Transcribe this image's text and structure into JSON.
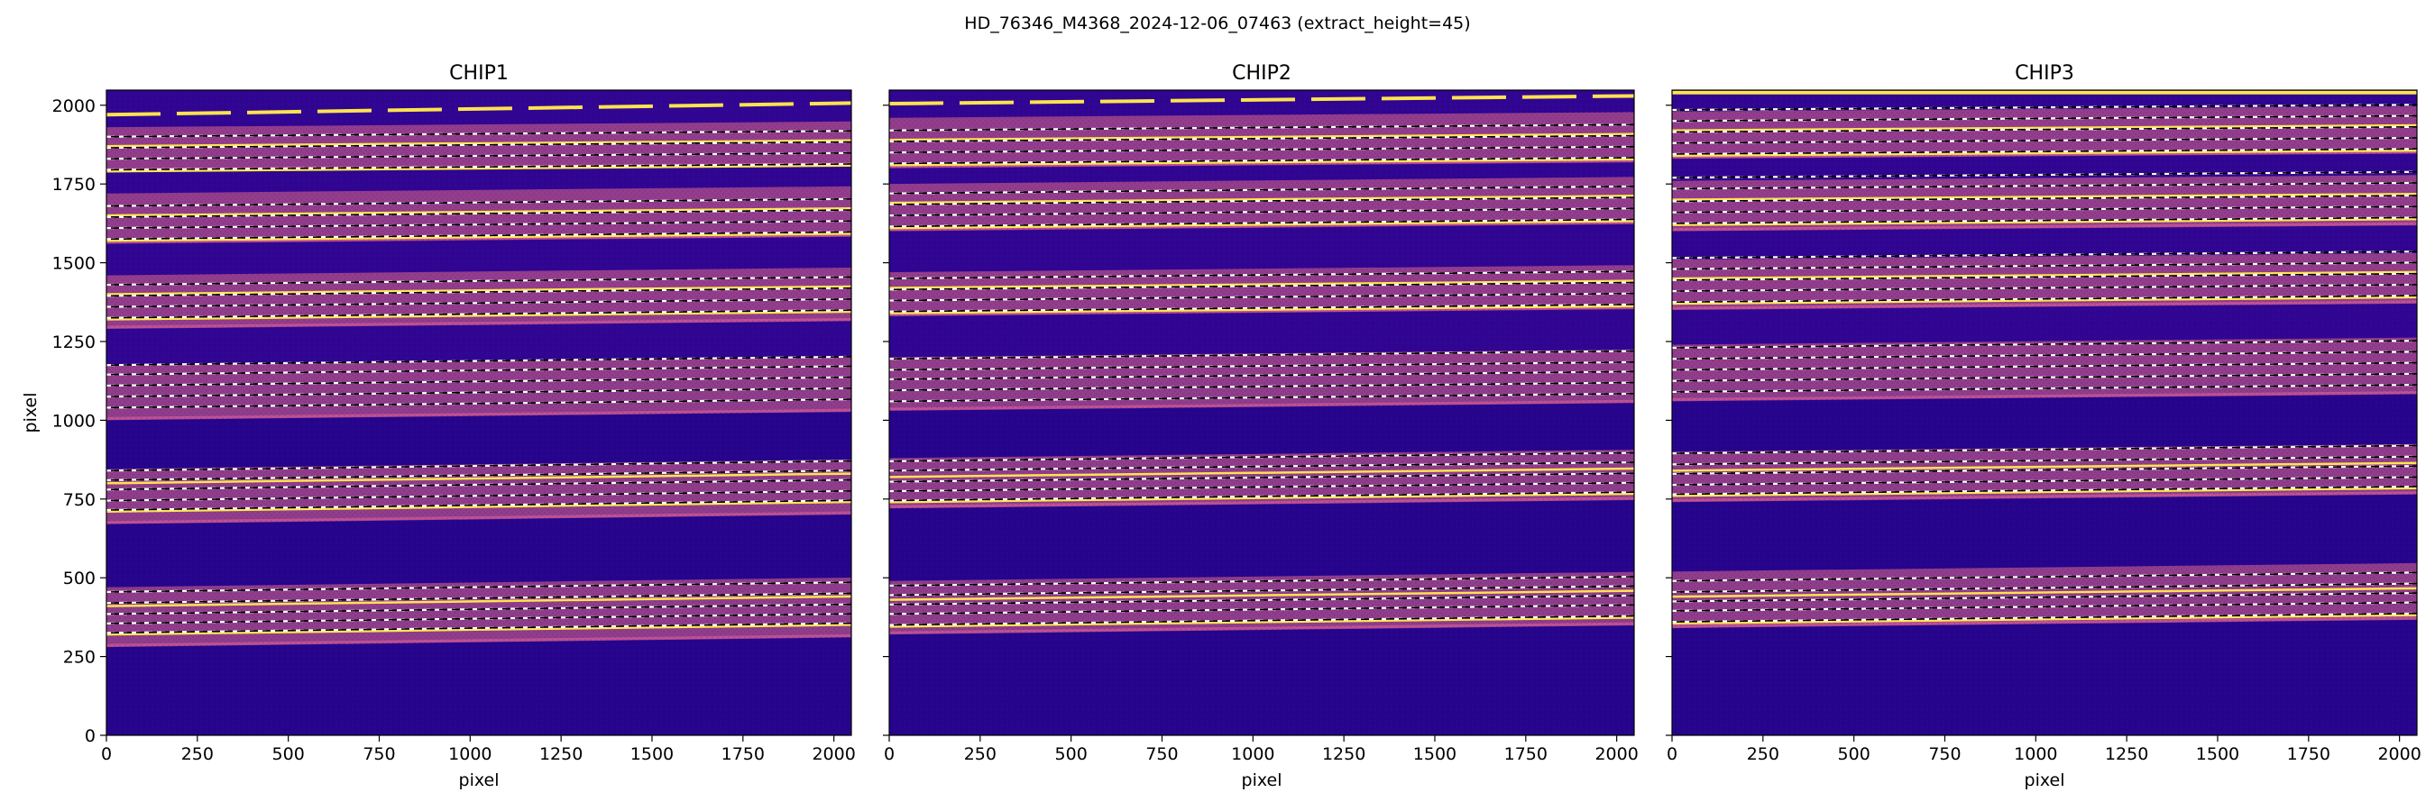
{
  "figure": {
    "suptitle": "HD_76346_M4368_2024-12-06_07463  (extract_height=45)"
  },
  "colors": {
    "background_dark": "#26048c",
    "background_mid": "#3a0596",
    "order_band": "#b4508a",
    "order_band_edge": "#e0609a",
    "trace_line": "#fde34f",
    "extract_line_white": "#ffffff",
    "extract_line_black": "#000000",
    "axis": "#000000"
  },
  "chart_data": [
    {
      "type": "heatmap",
      "title": "CHIP1",
      "xlabel": "pixel",
      "ylabel": "pixel",
      "xlim": [
        0,
        2048
      ],
      "ylim": [
        0,
        2048
      ],
      "xticks": [
        0,
        250,
        500,
        750,
        1000,
        1250,
        1500,
        1750,
        2000
      ],
      "yticks": [
        0,
        250,
        500,
        750,
        1000,
        1250,
        1500,
        1750,
        2000
      ],
      "order_bands": [
        {
          "y0": 280,
          "y1": 470,
          "slope": 0.015
        },
        {
          "y0": 670,
          "y1": 845,
          "slope": 0.015
        },
        {
          "y0": 1000,
          "y1": 1175,
          "slope": 0.013
        },
        {
          "y0": 1290,
          "y1": 1460,
          "slope": 0.012
        },
        {
          "y0": 1560,
          "y1": 1720,
          "slope": 0.011
        },
        {
          "y0": 1790,
          "y1": 1930,
          "slope": 0.009
        }
      ],
      "traces": [
        {
          "y": 320,
          "slope": 0.015
        },
        {
          "y": 410,
          "slope": 0.015
        },
        {
          "y": 710,
          "slope": 0.015
        },
        {
          "y": 800,
          "slope": 0.015
        },
        {
          "y": 1320,
          "slope": 0.012
        },
        {
          "y": 1400,
          "slope": 0.012
        },
        {
          "y": 1570,
          "slope": 0.011
        },
        {
          "y": 1650,
          "slope": 0.011
        },
        {
          "y": 1790,
          "slope": 0.009
        },
        {
          "y": 1870,
          "slope": 0.009
        }
      ],
      "extraction_lines": [
        {
          "y": 325,
          "slope": 0.015
        },
        {
          "y": 355,
          "slope": 0.015
        },
        {
          "y": 385,
          "slope": 0.015
        },
        {
          "y": 420,
          "slope": 0.015
        },
        {
          "y": 455,
          "slope": 0.015
        },
        {
          "y": 715,
          "slope": 0.015
        },
        {
          "y": 745,
          "slope": 0.015
        },
        {
          "y": 780,
          "slope": 0.015
        },
        {
          "y": 810,
          "slope": 0.015
        },
        {
          "y": 840,
          "slope": 0.015
        },
        {
          "y": 1040,
          "slope": 0.013
        },
        {
          "y": 1075,
          "slope": 0.013
        },
        {
          "y": 1110,
          "slope": 0.013
        },
        {
          "y": 1145,
          "slope": 0.013
        },
        {
          "y": 1175,
          "slope": 0.013
        },
        {
          "y": 1325,
          "slope": 0.012
        },
        {
          "y": 1360,
          "slope": 0.012
        },
        {
          "y": 1395,
          "slope": 0.012
        },
        {
          "y": 1430,
          "slope": 0.012
        },
        {
          "y": 1575,
          "slope": 0.011
        },
        {
          "y": 1610,
          "slope": 0.011
        },
        {
          "y": 1645,
          "slope": 0.011
        },
        {
          "y": 1680,
          "slope": 0.011
        },
        {
          "y": 1795,
          "slope": 0.009
        },
        {
          "y": 1830,
          "slope": 0.009
        },
        {
          "y": 1865,
          "slope": 0.009
        },
        {
          "y": 1900,
          "slope": 0.009
        }
      ],
      "edge_trace": {
        "y": 1970,
        "slope": 0.018,
        "dashed": true
      }
    },
    {
      "type": "heatmap",
      "title": "CHIP2",
      "xlabel": "pixel",
      "ylabel": "",
      "xlim": [
        0,
        2048
      ],
      "ylim": [
        0,
        2048
      ],
      "xticks": [
        0,
        250,
        500,
        750,
        1000,
        1250,
        1500,
        1750,
        2000
      ],
      "yticks": [
        0,
        250,
        500,
        750,
        1000,
        1250,
        1500,
        1750,
        2000
      ],
      "order_bands": [
        {
          "y0": 320,
          "y1": 490,
          "slope": 0.014
        },
        {
          "y0": 720,
          "y1": 880,
          "slope": 0.013
        },
        {
          "y0": 1030,
          "y1": 1200,
          "slope": 0.012
        },
        {
          "y0": 1330,
          "y1": 1470,
          "slope": 0.011
        },
        {
          "y0": 1600,
          "y1": 1750,
          "slope": 0.011
        },
        {
          "y0": 1800,
          "y1": 1960,
          "slope": 0.009
        }
      ],
      "traces": [
        {
          "y": 345,
          "slope": 0.014
        },
        {
          "y": 430,
          "slope": 0.014
        },
        {
          "y": 740,
          "slope": 0.013
        },
        {
          "y": 820,
          "slope": 0.013
        },
        {
          "y": 1340,
          "slope": 0.011
        },
        {
          "y": 1420,
          "slope": 0.011
        },
        {
          "y": 1610,
          "slope": 0.011
        },
        {
          "y": 1690,
          "slope": 0.011
        },
        {
          "y": 1810,
          "slope": 0.009
        },
        {
          "y": 1890,
          "slope": 0.009
        }
      ],
      "extraction_lines": [
        {
          "y": 350,
          "slope": 0.014
        },
        {
          "y": 385,
          "slope": 0.014
        },
        {
          "y": 415,
          "slope": 0.014
        },
        {
          "y": 445,
          "slope": 0.014
        },
        {
          "y": 475,
          "slope": 0.014
        },
        {
          "y": 745,
          "slope": 0.013
        },
        {
          "y": 775,
          "slope": 0.013
        },
        {
          "y": 805,
          "slope": 0.013
        },
        {
          "y": 840,
          "slope": 0.013
        },
        {
          "y": 870,
          "slope": 0.013
        },
        {
          "y": 1060,
          "slope": 0.012
        },
        {
          "y": 1095,
          "slope": 0.012
        },
        {
          "y": 1130,
          "slope": 0.012
        },
        {
          "y": 1160,
          "slope": 0.012
        },
        {
          "y": 1195,
          "slope": 0.012
        },
        {
          "y": 1345,
          "slope": 0.011
        },
        {
          "y": 1380,
          "slope": 0.011
        },
        {
          "y": 1415,
          "slope": 0.011
        },
        {
          "y": 1450,
          "slope": 0.011
        },
        {
          "y": 1615,
          "slope": 0.011
        },
        {
          "y": 1650,
          "slope": 0.011
        },
        {
          "y": 1685,
          "slope": 0.011
        },
        {
          "y": 1720,
          "slope": 0.011
        },
        {
          "y": 1815,
          "slope": 0.009
        },
        {
          "y": 1850,
          "slope": 0.009
        },
        {
          "y": 1885,
          "slope": 0.009
        },
        {
          "y": 1920,
          "slope": 0.009
        }
      ],
      "edge_trace": {
        "y": 2005,
        "slope": 0.012,
        "dashed": true
      }
    },
    {
      "type": "heatmap",
      "title": "CHIP3",
      "xlabel": "pixel",
      "ylabel": "",
      "xlim": [
        0,
        2048
      ],
      "ylim": [
        0,
        2048
      ],
      "xticks": [
        0,
        250,
        500,
        750,
        1000,
        1250,
        1500,
        1750,
        2000
      ],
      "yticks": [
        0,
        250,
        500,
        750,
        1000,
        1250,
        1500,
        1750,
        2000
      ],
      "order_bands": [
        {
          "y0": 340,
          "y1": 520,
          "slope": 0.013
        },
        {
          "y0": 740,
          "y1": 900,
          "slope": 0.012
        },
        {
          "y0": 1060,
          "y1": 1240,
          "slope": 0.011
        },
        {
          "y0": 1350,
          "y1": 1510,
          "slope": 0.01
        },
        {
          "y0": 1600,
          "y1": 1760,
          "slope": 0.009
        },
        {
          "y0": 1830,
          "y1": 1980,
          "slope": 0.008
        }
      ],
      "traces": [
        {
          "y": 355,
          "slope": 0.013
        },
        {
          "y": 440,
          "slope": 0.013
        },
        {
          "y": 760,
          "slope": 0.012
        },
        {
          "y": 840,
          "slope": 0.012
        },
        {
          "y": 1370,
          "slope": 0.01
        },
        {
          "y": 1450,
          "slope": 0.01
        },
        {
          "y": 1620,
          "slope": 0.009
        },
        {
          "y": 1700,
          "slope": 0.009
        },
        {
          "y": 1840,
          "slope": 0.008
        },
        {
          "y": 1920,
          "slope": 0.008
        }
      ],
      "extraction_lines": [
        {
          "y": 360,
          "slope": 0.013
        },
        {
          "y": 395,
          "slope": 0.013
        },
        {
          "y": 425,
          "slope": 0.013
        },
        {
          "y": 455,
          "slope": 0.013
        },
        {
          "y": 490,
          "slope": 0.013
        },
        {
          "y": 765,
          "slope": 0.012
        },
        {
          "y": 795,
          "slope": 0.012
        },
        {
          "y": 830,
          "slope": 0.012
        },
        {
          "y": 860,
          "slope": 0.012
        },
        {
          "y": 895,
          "slope": 0.012
        },
        {
          "y": 1090,
          "slope": 0.011
        },
        {
          "y": 1125,
          "slope": 0.011
        },
        {
          "y": 1160,
          "slope": 0.011
        },
        {
          "y": 1195,
          "slope": 0.011
        },
        {
          "y": 1230,
          "slope": 0.011
        },
        {
          "y": 1375,
          "slope": 0.01
        },
        {
          "y": 1410,
          "slope": 0.01
        },
        {
          "y": 1445,
          "slope": 0.01
        },
        {
          "y": 1480,
          "slope": 0.01
        },
        {
          "y": 1515,
          "slope": 0.01
        },
        {
          "y": 1625,
          "slope": 0.009
        },
        {
          "y": 1660,
          "slope": 0.009
        },
        {
          "y": 1695,
          "slope": 0.009
        },
        {
          "y": 1735,
          "slope": 0.009
        },
        {
          "y": 1770,
          "slope": 0.009
        },
        {
          "y": 1845,
          "slope": 0.008
        },
        {
          "y": 1880,
          "slope": 0.008
        },
        {
          "y": 1915,
          "slope": 0.008
        },
        {
          "y": 1950,
          "slope": 0.008
        },
        {
          "y": 1985,
          "slope": 0.008
        }
      ],
      "edge_trace": {
        "y": 2040,
        "slope": 0.0,
        "dashed": false
      }
    }
  ]
}
